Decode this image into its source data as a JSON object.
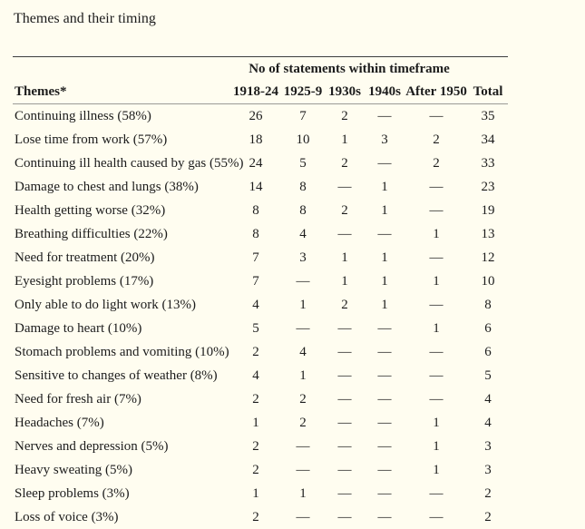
{
  "page": {
    "title": "Themes and their timing"
  },
  "colors": {
    "background": "#fffdf0",
    "text": "#1c1c1c",
    "top_rule": "#3d3d3d",
    "header_rule": "#9a9a96"
  },
  "table": {
    "group_header": "No of statements within timeframe",
    "columns": [
      "Themes*",
      "1918-24",
      "1925-9",
      "1930s",
      "1940s",
      "After 1950",
      "Total"
    ],
    "rows": [
      [
        "Continuing illness (58%)",
        "26",
        "7",
        "2",
        "—",
        "—",
        "35"
      ],
      [
        "Lose time from work (57%)",
        "18",
        "10",
        "1",
        "3",
        "2",
        "34"
      ],
      [
        "Continuing ill health caused by gas (55%)",
        "24",
        "5",
        "2",
        "—",
        "2",
        "33"
      ],
      [
        "Damage to chest and lungs (38%)",
        "14",
        "8",
        "—",
        "1",
        "—",
        "23"
      ],
      [
        "Health getting worse (32%)",
        "8",
        "8",
        "2",
        "1",
        "—",
        "19"
      ],
      [
        "Breathing difficulties (22%)",
        "8",
        "4",
        "—",
        "—",
        "1",
        "13"
      ],
      [
        "Need for treatment (20%)",
        "7",
        "3",
        "1",
        "1",
        "—",
        "12"
      ],
      [
        "Eyesight problems (17%)",
        "7",
        "—",
        "1",
        "1",
        "1",
        "10"
      ],
      [
        "Only able to do light work (13%)",
        "4",
        "1",
        "2",
        "1",
        "—",
        "8"
      ],
      [
        "Damage to heart (10%)",
        "5",
        "—",
        "—",
        "—",
        "1",
        "6"
      ],
      [
        "Stomach problems and vomiting (10%)",
        "2",
        "4",
        "—",
        "—",
        "—",
        "6"
      ],
      [
        "Sensitive to changes of weather (8%)",
        "4",
        "1",
        "—",
        "—",
        "—",
        "5"
      ],
      [
        "Need for fresh air (7%)",
        "2",
        "2",
        "—",
        "—",
        "—",
        "4"
      ],
      [
        "Headaches (7%)",
        "1",
        "2",
        "—",
        "—",
        "1",
        "4"
      ],
      [
        "Nerves and depression (5%)",
        "2",
        "—",
        "—",
        "—",
        "1",
        "3"
      ],
      [
        "Heavy sweating (5%)",
        "2",
        "—",
        "—",
        "—",
        "1",
        "3"
      ],
      [
        "Sleep problems (3%)",
        "1",
        "1",
        "—",
        "—",
        "—",
        "2"
      ],
      [
        "Loss of voice (3%)",
        "2",
        "—",
        "—",
        "—",
        "—",
        "2"
      ]
    ]
  }
}
